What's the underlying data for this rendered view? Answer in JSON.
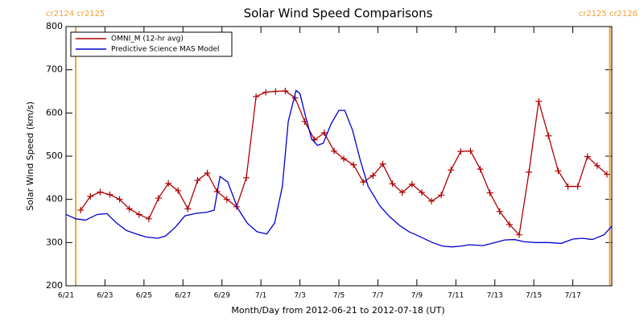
{
  "chart_data": {
    "type": "line",
    "title": "Solar Wind Speed Comparisons",
    "xlabel": "Month/Day from 2012-06-21 to 2012-07-18 (UT)",
    "ylabel": "Solar Wind Speed (km/s)",
    "xlim": [
      0,
      28
    ],
    "ylim": [
      200,
      800
    ],
    "xticks": [
      {
        "value": 0,
        "label": "6/21"
      },
      {
        "value": 2,
        "label": "6/23"
      },
      {
        "value": 4,
        "label": "6/25"
      },
      {
        "value": 6,
        "label": "6/27"
      },
      {
        "value": 8,
        "label": "6/29"
      },
      {
        "value": 10,
        "label": "7/1"
      },
      {
        "value": 12,
        "label": "7/3"
      },
      {
        "value": 14,
        "label": "7/5"
      },
      {
        "value": 16,
        "label": "7/7"
      },
      {
        "value": 18,
        "label": "7/9"
      },
      {
        "value": 20,
        "label": "7/11"
      },
      {
        "value": 22,
        "label": "7/13"
      },
      {
        "value": 24,
        "label": "7/15"
      },
      {
        "value": 26,
        "label": "7/17"
      }
    ],
    "yticks": [
      200,
      300,
      400,
      500,
      600,
      700,
      800
    ],
    "legend": "upper left",
    "markers": [
      {
        "x": 0.5,
        "label": "cr2124 cr2125",
        "color": "#f0a030"
      },
      {
        "x": 27.9,
        "label": "cr2125 cr2126",
        "color": "#f0a030"
      }
    ],
    "series": [
      {
        "name": "OMNI_M (12-hr avg)",
        "color": "#b00000",
        "marker": "plus",
        "x": [
          0.75,
          1.25,
          1.75,
          2.25,
          2.75,
          3.25,
          3.75,
          4.25,
          4.75,
          5.25,
          5.75,
          6.25,
          6.75,
          7.25,
          7.75,
          8.25,
          8.75,
          9.25,
          9.75,
          10.25,
          10.75,
          11.25,
          11.75,
          12.25,
          12.75,
          13.25,
          13.75,
          14.25,
          14.75,
          15.25,
          15.75,
          16.25,
          16.75,
          17.25,
          17.75,
          18.25,
          18.75,
          19.25,
          19.75,
          20.25,
          20.75,
          21.25,
          21.75,
          22.25,
          22.75,
          23.25,
          23.75,
          24.25,
          24.75,
          25.25,
          25.75,
          26.25,
          26.75,
          27.25,
          27.75
        ],
        "values": [
          375,
          407,
          417,
          411,
          400,
          378,
          365,
          355,
          403,
          437,
          420,
          378,
          444,
          461,
          418,
          400,
          383,
          450,
          638,
          648,
          650,
          651,
          635,
          580,
          538,
          554,
          512,
          494,
          480,
          440,
          455,
          482,
          436,
          416,
          435,
          416,
          396,
          410,
          468,
          511,
          512,
          470,
          415,
          372,
          342,
          318,
          463,
          627,
          547,
          466,
          430,
          430,
          499,
          478,
          458
        ]
      },
      {
        "name": "Predictive Science MAS Model",
        "color": "#0000d0",
        "x": [
          0,
          0.5,
          1.0,
          1.6,
          2.1,
          2.6,
          3.1,
          3.6,
          4.1,
          4.7,
          5.1,
          5.6,
          6.1,
          6.7,
          7.2,
          7.6,
          7.9,
          8.3,
          8.8,
          9.3,
          9.8,
          10.3,
          10.7,
          11.1,
          11.4,
          11.8,
          12.0,
          12.3,
          12.6,
          12.9,
          13.2,
          13.6,
          14.0,
          14.3,
          14.7,
          15.1,
          15.5,
          16.1,
          16.6,
          17.1,
          17.6,
          18.1,
          18.8,
          19.3,
          19.8,
          20.3,
          20.7,
          21.4,
          22.0,
          22.5,
          23.0,
          23.5,
          24.1,
          24.8,
          25.4,
          26.0,
          26.5,
          27.0,
          27.6,
          28.0
        ],
        "values": [
          365,
          355,
          352,
          365,
          367,
          345,
          328,
          320,
          313,
          310,
          315,
          335,
          362,
          368,
          370,
          375,
          453,
          440,
          380,
          345,
          325,
          320,
          345,
          430,
          580,
          652,
          645,
          590,
          540,
          525,
          530,
          575,
          606,
          606,
          560,
          490,
          430,
          385,
          360,
          340,
          325,
          315,
          300,
          292,
          290,
          292,
          295,
          293,
          300,
          306,
          307,
          302,
          300,
          300,
          298,
          308,
          310,
          307,
          318,
          338
        ]
      }
    ]
  }
}
